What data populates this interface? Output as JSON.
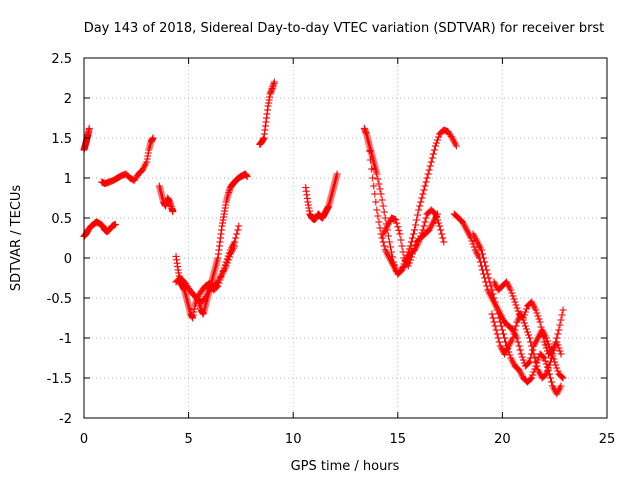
{
  "chart_data": {
    "type": "scatter",
    "title": "Day 143 of 2018, Sidereal Day-to-day VTEC variation (SDTVAR) for receiver brst",
    "xlabel": "GPS time / hours",
    "ylabel": "SDTVAR / TECUs",
    "xlim": [
      0,
      25
    ],
    "ylim": [
      -2,
      2.5
    ],
    "xticks": [
      0,
      5,
      10,
      15,
      20,
      25
    ],
    "xtick_labels": [
      "0",
      "5",
      "10",
      "15",
      "20",
      "25"
    ],
    "yticks": [
      -2,
      -1.5,
      -1,
      -0.5,
      0,
      0.5,
      1,
      1.5,
      2,
      2.5
    ],
    "ytick_labels": [
      "-2",
      "-1.5",
      "-1",
      "-0.5",
      "0",
      "0.5",
      "1",
      "1.5",
      "2",
      "2.5"
    ],
    "grid": true,
    "marker": "+",
    "color": "#ff0000",
    "series": [
      {
        "name": "s1",
        "x": [
          0.0,
          0.1,
          0.2,
          0.35,
          0.5,
          0.6,
          0.75,
          0.9,
          1.0,
          1.1,
          1.2,
          1.35,
          1.5
        ],
        "y": [
          0.27,
          0.3,
          0.35,
          0.4,
          0.43,
          0.45,
          0.43,
          0.4,
          0.35,
          0.33,
          0.35,
          0.4,
          0.42
        ]
      },
      {
        "name": "s2",
        "x": [
          0.0,
          0.05,
          0.1,
          0.15,
          0.2,
          0.25
        ],
        "y": [
          1.35,
          1.4,
          1.45,
          1.5,
          1.55,
          1.62
        ]
      },
      {
        "name": "s3",
        "x": [
          0.85,
          1.0,
          1.2,
          1.4,
          1.6,
          1.8,
          2.0,
          2.2,
          2.4,
          2.6,
          2.8,
          3.0,
          3.1,
          3.2,
          3.3
        ],
        "y": [
          0.95,
          0.93,
          0.95,
          0.97,
          1.0,
          1.03,
          1.05,
          1.0,
          0.97,
          1.05,
          1.1,
          1.2,
          1.35,
          1.45,
          1.5
        ]
      },
      {
        "name": "s4",
        "x": [
          3.6,
          3.7,
          3.8,
          3.9,
          4.0,
          4.1,
          4.2,
          4.25
        ],
        "y": [
          0.9,
          0.8,
          0.7,
          0.65,
          0.75,
          0.7,
          0.62,
          0.58
        ]
      },
      {
        "name": "s5",
        "x": [
          4.4,
          4.5,
          4.6,
          4.7,
          4.8,
          4.9,
          5.0,
          5.1,
          5.2,
          5.3,
          5.4,
          5.5,
          5.6,
          5.7,
          5.8,
          5.9,
          6.0,
          6.1,
          6.2,
          6.3,
          6.4,
          6.5,
          6.6,
          6.7,
          6.8,
          6.9,
          7.0,
          7.1,
          7.2,
          7.3,
          7.4,
          7.5,
          7.6,
          7.7,
          7.8
        ],
        "y": [
          0.02,
          -0.15,
          -0.3,
          -0.35,
          -0.4,
          -0.5,
          -0.6,
          -0.7,
          -0.75,
          -0.6,
          -0.5,
          -0.55,
          -0.65,
          -0.7,
          -0.6,
          -0.5,
          -0.4,
          -0.3,
          -0.2,
          -0.1,
          0.0,
          0.2,
          0.4,
          0.55,
          0.7,
          0.8,
          0.88,
          0.92,
          0.95,
          0.98,
          1.0,
          1.02,
          1.03,
          1.05,
          1.02
        ]
      },
      {
        "name": "s6",
        "x": [
          4.4,
          4.6,
          4.8,
          5.0,
          5.2,
          5.4,
          5.6,
          5.8,
          6.0,
          6.2,
          6.4,
          6.6,
          6.8,
          7.0,
          7.2
        ],
        "y": [
          -0.3,
          -0.25,
          -0.3,
          -0.38,
          -0.45,
          -0.5,
          -0.42,
          -0.35,
          -0.32,
          -0.4,
          -0.35,
          -0.2,
          -0.1,
          0.05,
          0.15
        ]
      },
      {
        "name": "s7",
        "x": [
          5.2,
          5.4,
          5.6,
          5.8,
          6.0,
          6.2,
          6.4,
          6.6,
          6.8,
          7.0,
          7.2,
          7.4
        ],
        "y": [
          -0.45,
          -0.5,
          -0.55,
          -0.5,
          -0.4,
          -0.35,
          -0.3,
          -0.2,
          -0.05,
          0.1,
          0.2,
          0.4
        ]
      },
      {
        "name": "s8",
        "x": [
          8.4,
          8.5,
          8.6,
          8.7,
          8.8,
          8.9,
          9.0,
          9.1
        ],
        "y": [
          1.42,
          1.45,
          1.5,
          1.7,
          1.9,
          2.05,
          2.12,
          2.2
        ]
      },
      {
        "name": "s9",
        "x": [
          10.6,
          10.7,
          10.8,
          10.9,
          11.0,
          11.1,
          11.2,
          11.3,
          11.4,
          11.5,
          11.6,
          11.7,
          11.8,
          11.9,
          12.0,
          12.1
        ],
        "y": [
          0.88,
          0.7,
          0.55,
          0.5,
          0.48,
          0.5,
          0.55,
          0.52,
          0.5,
          0.55,
          0.6,
          0.65,
          0.75,
          0.85,
          0.95,
          1.05
        ]
      },
      {
        "name": "s10",
        "x": [
          13.4,
          13.5,
          13.6,
          13.7,
          13.8,
          13.9,
          14.0,
          14.2,
          14.4,
          14.6,
          14.8,
          15.0,
          15.2,
          15.4,
          15.6,
          15.8,
          16.0,
          16.2,
          16.4,
          16.6,
          16.8,
          17.0,
          17.2,
          17.4,
          17.6,
          17.8
        ],
        "y": [
          1.62,
          1.55,
          1.45,
          1.35,
          1.25,
          1.15,
          1.05,
          0.8,
          0.5,
          0.2,
          -0.05,
          -0.2,
          -0.15,
          0.0,
          0.15,
          0.35,
          0.6,
          0.8,
          1.0,
          1.2,
          1.4,
          1.55,
          1.6,
          1.58,
          1.5,
          1.4
        ]
      },
      {
        "name": "s11",
        "x": [
          13.6,
          13.8,
          14.0,
          14.2,
          14.4,
          14.6,
          14.8,
          15.0,
          15.2,
          15.4,
          15.6,
          15.8,
          16.0,
          16.2,
          16.4,
          16.6,
          16.8,
          17.0,
          17.2
        ],
        "y": [
          1.45,
          1.0,
          0.6,
          0.3,
          0.1,
          0.0,
          -0.1,
          -0.2,
          -0.15,
          -0.05,
          0.05,
          0.1,
          0.2,
          0.35,
          0.55,
          0.6,
          0.55,
          0.4,
          0.2
        ]
      },
      {
        "name": "s12",
        "x": [
          14.3,
          14.5,
          14.7,
          14.9,
          15.1,
          15.3,
          15.5,
          15.7,
          15.9,
          16.1,
          16.3,
          16.5,
          16.7,
          16.9
        ],
        "y": [
          0.3,
          0.4,
          0.5,
          0.48,
          0.3,
          0.0,
          -0.1,
          0.05,
          0.2,
          0.25,
          0.3,
          0.35,
          0.45,
          0.55
        ]
      },
      {
        "name": "s13",
        "x": [
          17.7,
          17.9,
          18.1,
          18.3,
          18.5,
          18.7,
          18.9,
          19.1,
          19.3,
          19.5,
          19.7,
          19.9,
          20.1,
          20.3,
          20.5,
          20.7,
          20.9,
          21.1,
          21.3,
          21.5,
          21.7,
          21.9,
          22.1,
          22.3,
          22.5,
          22.7,
          22.9
        ],
        "y": [
          0.55,
          0.5,
          0.45,
          0.35,
          0.25,
          0.1,
          0.0,
          -0.2,
          -0.4,
          -0.5,
          -0.6,
          -0.7,
          -0.8,
          -0.85,
          -0.9,
          -1.0,
          -1.2,
          -1.35,
          -1.3,
          -1.1,
          -1.0,
          -0.9,
          -1.0,
          -1.15,
          -1.3,
          -1.45,
          -1.5
        ]
      },
      {
        "name": "s14",
        "x": [
          18.6,
          18.8,
          19.0,
          19.2,
          19.4,
          19.6,
          19.8,
          20.0,
          20.2,
          20.4,
          20.6,
          20.8,
          21.0,
          21.2,
          21.4,
          21.6,
          21.8,
          22.0,
          22.2,
          22.4,
          22.6,
          22.8
        ],
        "y": [
          0.3,
          0.2,
          0.1,
          -0.1,
          -0.3,
          -0.5,
          -0.7,
          -0.9,
          -1.1,
          -1.25,
          -1.35,
          -1.4,
          -1.5,
          -1.55,
          -1.5,
          -1.35,
          -1.2,
          -1.25,
          -1.4,
          -1.6,
          -1.7,
          -1.6
        ]
      },
      {
        "name": "s15",
        "x": [
          19.5,
          19.7,
          19.9,
          20.1,
          20.3,
          20.5,
          20.7,
          20.9,
          21.1,
          21.3,
          21.5,
          21.7,
          21.9,
          22.1,
          22.3,
          22.5,
          22.7,
          22.9
        ],
        "y": [
          -0.7,
          -0.9,
          -1.1,
          -1.2,
          -1.1,
          -1.0,
          -0.8,
          -0.7,
          -0.85,
          -1.0,
          -1.2,
          -1.4,
          -1.5,
          -1.45,
          -1.3,
          -1.1,
          -0.9,
          -0.65
        ]
      },
      {
        "name": "s16",
        "x": [
          19.6,
          19.8,
          20.0,
          20.2,
          20.4,
          20.6,
          20.8,
          21.0,
          21.2,
          21.4,
          21.6,
          21.8,
          22.0,
          22.2,
          22.4,
          22.6,
          22.8
        ],
        "y": [
          -0.3,
          -0.4,
          -0.35,
          -0.3,
          -0.4,
          -0.55,
          -0.7,
          -0.75,
          -0.6,
          -0.55,
          -0.65,
          -0.8,
          -1.05,
          -1.2,
          -1.15,
          -1.05,
          -1.2
        ]
      }
    ]
  }
}
